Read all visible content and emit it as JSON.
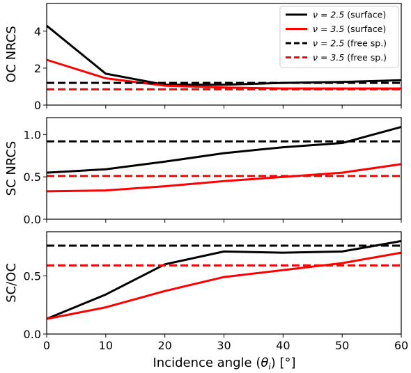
{
  "xlabel_prefix": "Incidence angle (",
  "xlabel_theta": "θ",
  "xlabel_sub": "i",
  "xlabel_suffix": ") [°]",
  "x_ticks": [
    "0",
    "10",
    "20",
    "30",
    "40",
    "50",
    "60"
  ],
  "legend": {
    "location": "upper right",
    "entries": [
      {
        "nu": "ν = 2.5",
        "label": " (surface)",
        "color": "#000000",
        "dash": false
      },
      {
        "nu": "ν = 3.5",
        "label": " (surface)",
        "color": "#ff0000",
        "dash": false
      },
      {
        "nu": "ν = 2.5",
        "label": " (free sp.)",
        "color": "#000000",
        "dash": true
      },
      {
        "nu": "ν = 3.5",
        "label": " (free sp.)",
        "color": "#ff0000",
        "dash": true
      }
    ]
  },
  "chart_data": [
    {
      "type": "line",
      "ylabel": "OC NRCS",
      "xlim": [
        0,
        60
      ],
      "ylim": [
        0,
        5.5
      ],
      "yticks": [
        0,
        2,
        4
      ],
      "x": [
        0,
        10,
        20,
        30,
        40,
        50,
        60
      ],
      "series": [
        {
          "name": "ν = 2.5 (surface)",
          "color": "#000000",
          "style": "solid",
          "values": [
            4.3,
            1.7,
            1.1,
            1.1,
            1.2,
            1.25,
            1.35
          ]
        },
        {
          "name": "ν = 3.5 (surface)",
          "color": "#ff0000",
          "style": "solid",
          "values": [
            2.45,
            1.45,
            1.05,
            0.95,
            0.9,
            0.9,
            0.9
          ]
        },
        {
          "name": "ν = 2.5 (free sp.)",
          "color": "#000000",
          "style": "dashed",
          "values": [
            1.2,
            1.2,
            1.2,
            1.2,
            1.2,
            1.2,
            1.2
          ]
        },
        {
          "name": "ν = 3.5 (free sp.)",
          "color": "#ff0000",
          "style": "dashed",
          "values": [
            0.85,
            0.85,
            0.85,
            0.85,
            0.85,
            0.85,
            0.85
          ]
        }
      ]
    },
    {
      "type": "line",
      "ylabel": "SC NRCS",
      "xlim": [
        0,
        60
      ],
      "ylim": [
        0,
        1.2
      ],
      "yticks": [
        0.0,
        0.5,
        1.0
      ],
      "x": [
        0,
        10,
        20,
        30,
        40,
        50,
        60
      ],
      "series": [
        {
          "name": "ν = 2.5 (surface)",
          "color": "#000000",
          "style": "solid",
          "values": [
            0.55,
            0.59,
            0.68,
            0.78,
            0.85,
            0.9,
            1.09
          ]
        },
        {
          "name": "ν = 3.5 (surface)",
          "color": "#ff0000",
          "style": "solid",
          "values": [
            0.33,
            0.34,
            0.39,
            0.45,
            0.5,
            0.55,
            0.65
          ]
        },
        {
          "name": "ν = 2.5 (free sp.)",
          "color": "#000000",
          "style": "dashed",
          "values": [
            0.92,
            0.92,
            0.92,
            0.92,
            0.92,
            0.92,
            0.92
          ]
        },
        {
          "name": "ν = 3.5 (free sp.)",
          "color": "#ff0000",
          "style": "dashed",
          "values": [
            0.51,
            0.51,
            0.51,
            0.51,
            0.51,
            0.51,
            0.51
          ]
        }
      ]
    },
    {
      "type": "line",
      "ylabel": "SC/OC",
      "xlim": [
        0,
        60
      ],
      "ylim": [
        0,
        0.88
      ],
      "yticks": [
        0.0,
        0.5
      ],
      "x": [
        0,
        10,
        20,
        30,
        40,
        50,
        60
      ],
      "series": [
        {
          "name": "ν = 2.5 (surface)",
          "color": "#000000",
          "style": "solid",
          "values": [
            0.13,
            0.34,
            0.6,
            0.71,
            0.7,
            0.71,
            0.8
          ]
        },
        {
          "name": "ν = 3.5 (surface)",
          "color": "#ff0000",
          "style": "solid",
          "values": [
            0.13,
            0.23,
            0.37,
            0.49,
            0.55,
            0.61,
            0.7
          ]
        },
        {
          "name": "ν = 2.5 (free sp.)",
          "color": "#000000",
          "style": "dashed",
          "values": [
            0.76,
            0.76,
            0.76,
            0.76,
            0.76,
            0.76,
            0.76
          ]
        },
        {
          "name": "ν = 3.5 (free sp.)",
          "color": "#ff0000",
          "style": "dashed",
          "values": [
            0.59,
            0.59,
            0.59,
            0.59,
            0.59,
            0.59,
            0.59
          ]
        }
      ]
    }
  ]
}
